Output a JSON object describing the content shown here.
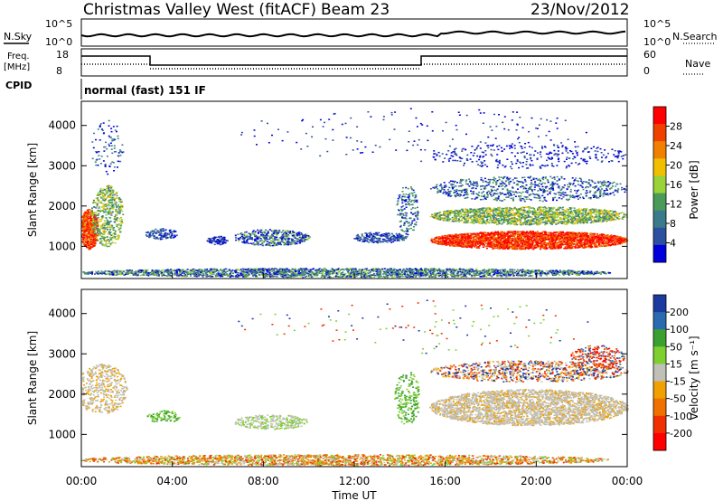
{
  "header": {
    "title": "Christmas Valley West (fitACF)",
    "beam": "Beam 23",
    "date": "23/Nov/2012"
  },
  "top_panels": {
    "nsky_label": "N.Sky",
    "nsearch_label": "N.Search",
    "freq_label_1": "Freq.",
    "freq_label_2": "[MHz]",
    "nave_label": "Nave",
    "cpid_label": "CPID",
    "cpid_value": "normal (fast) 151 IF",
    "noise_ticks": [
      "10^5",
      "10^0"
    ],
    "freq_ticks": [
      "18",
      "8"
    ],
    "nave_ticks": [
      "60",
      "0"
    ]
  },
  "colors": {
    "power_scale": [
      "#0000dd",
      "#2d4fa0",
      "#3a7a8a",
      "#4a9a5a",
      "#9ad23a",
      "#f0c000",
      "#f08000",
      "#f04000",
      "#ff0000"
    ],
    "velocity_scale": [
      "#1a3aa0",
      "#2a6ab0",
      "#3aa030",
      "#7ed030",
      "#c0c0b8",
      "#f0a000",
      "#f07000",
      "#f03000",
      "#ff0000"
    ]
  },
  "chart_data": [
    {
      "type": "heatmap",
      "name": "power",
      "ylabel": "Slant Range [km]",
      "y_ticks": [
        "1000",
        "2000",
        "3000",
        "4000"
      ],
      "ylim": [
        200,
        4600
      ],
      "x_ticks": [
        "00:00",
        "04:00",
        "08:00",
        "12:00",
        "16:00",
        "20:00",
        "00:00"
      ],
      "xlim": [
        0,
        24
      ],
      "colorbar": {
        "label": "Power [dB]",
        "ticks": [
          "28",
          "24",
          "20",
          "16",
          "12",
          "8",
          "4"
        ],
        "range": [
          0,
          30
        ]
      }
    },
    {
      "type": "heatmap",
      "name": "velocity",
      "ylabel": "Slant Range [km]",
      "y_ticks": [
        "1000",
        "2000",
        "3000",
        "4000"
      ],
      "ylim": [
        200,
        4600
      ],
      "x_ticks": [
        "00:00",
        "04:00",
        "08:00",
        "12:00",
        "16:00",
        "20:00",
        "00:00"
      ],
      "xlim": [
        0,
        24
      ],
      "xlabel": "Time UT",
      "colorbar": {
        "label": "Velocity [m s⁻¹]",
        "ticks": [
          "200",
          "100",
          "50",
          "15",
          "-15",
          "-50",
          "-100",
          "-200"
        ],
        "range": [
          -250,
          250
        ]
      }
    }
  ]
}
